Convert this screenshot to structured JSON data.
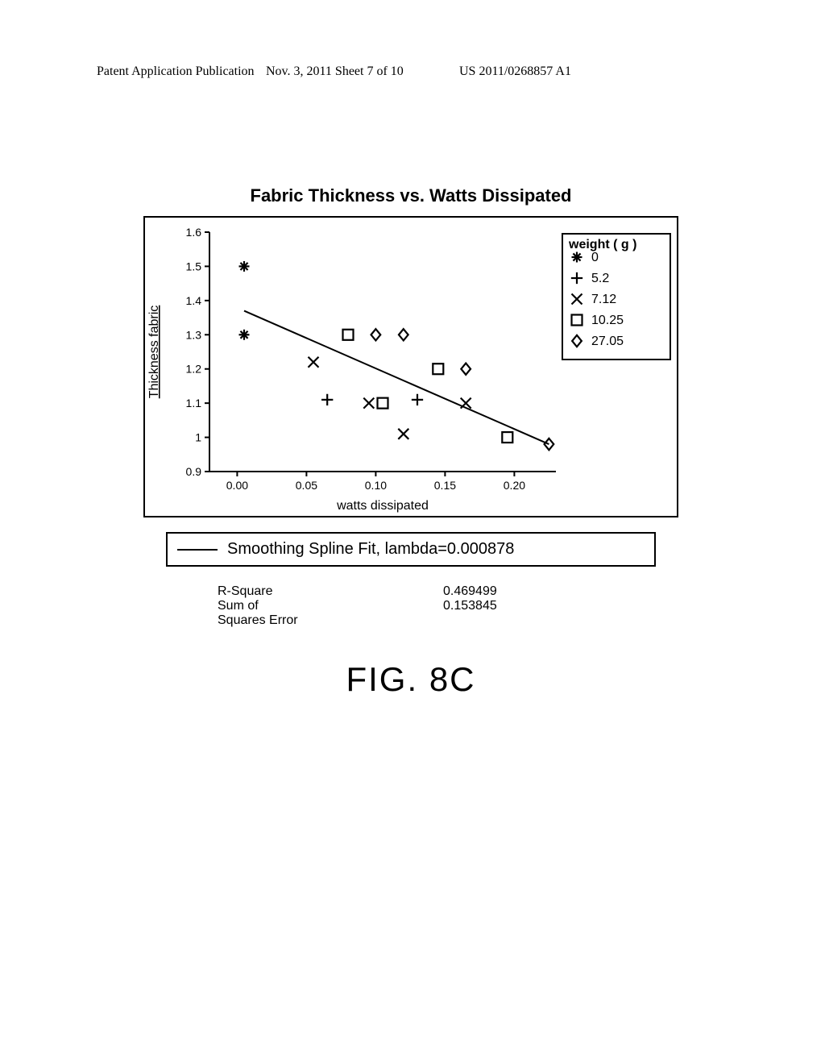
{
  "header": {
    "left": "Patent Application Publication",
    "mid": "Nov. 3, 2011  Sheet 7 of 10",
    "right": "US 2011/0268857 A1"
  },
  "chart": {
    "type": "scatter",
    "title": "Fabric Thickness vs. Watts Dissipated",
    "xlabel": "watts dissipated",
    "ylabel": "Thickness fabric",
    "xlim": [
      -0.02,
      0.23
    ],
    "ylim": [
      0.9,
      1.6
    ],
    "xticks": [
      0.0,
      0.05,
      0.1,
      0.15,
      0.2
    ],
    "xtick_labels": [
      "0.00",
      "0.05",
      "0.10",
      "0.15",
      "0.20"
    ],
    "yticks": [
      0.9,
      1.0,
      1.1,
      1.2,
      1.3,
      1.4,
      1.5,
      1.6
    ],
    "ytick_labels": [
      "0.9",
      "1",
      "1.1",
      "1.2",
      "1.3",
      "1.4",
      "1.5",
      "1.6"
    ],
    "axis_color": "#000000",
    "background_color": "#ffffff",
    "tick_fontsize": 14,
    "label_fontsize": 16,
    "title_fontsize": 22,
    "legend": {
      "title": "weight ( g )",
      "fontsize": 16,
      "items": [
        {
          "marker": "asterisk",
          "label": "0"
        },
        {
          "marker": "plus",
          "label": "5.2"
        },
        {
          "marker": "x",
          "label": "7.12"
        },
        {
          "marker": "square",
          "label": "10.25"
        },
        {
          "marker": "diamond",
          "label": "27.05"
        }
      ]
    },
    "series": [
      {
        "marker": "asterisk",
        "points": [
          [
            0.005,
            1.5
          ],
          [
            0.005,
            1.3
          ]
        ]
      },
      {
        "marker": "plus",
        "points": [
          [
            0.065,
            1.11
          ],
          [
            0.13,
            1.11
          ]
        ]
      },
      {
        "marker": "x",
        "points": [
          [
            0.055,
            1.22
          ],
          [
            0.095,
            1.1
          ],
          [
            0.12,
            1.01
          ],
          [
            0.165,
            1.1
          ]
        ]
      },
      {
        "marker": "square",
        "points": [
          [
            0.08,
            1.3
          ],
          [
            0.105,
            1.1
          ],
          [
            0.145,
            1.2
          ],
          [
            0.195,
            1.0
          ]
        ]
      },
      {
        "marker": "diamond",
        "points": [
          [
            0.1,
            1.3
          ],
          [
            0.12,
            1.3
          ],
          [
            0.165,
            1.2
          ],
          [
            0.225,
            0.98
          ]
        ]
      }
    ],
    "fit_line": {
      "points": [
        [
          0.005,
          1.37
        ],
        [
          0.225,
          0.98
        ]
      ],
      "color": "#000000",
      "width": 2
    },
    "marker_size": 10,
    "marker_stroke": "#000000",
    "marker_stroke_width": 2.2
  },
  "fit_legend": "Smoothing Spline Fit, lambda=0.000878",
  "stats": {
    "rows": [
      {
        "label": "R-Square",
        "value": "0.469499"
      },
      {
        "label": "Sum of",
        "value": "0.153845"
      },
      {
        "label": "Squares Error",
        "value": ""
      }
    ]
  },
  "figure_label": "FIG. 8C"
}
